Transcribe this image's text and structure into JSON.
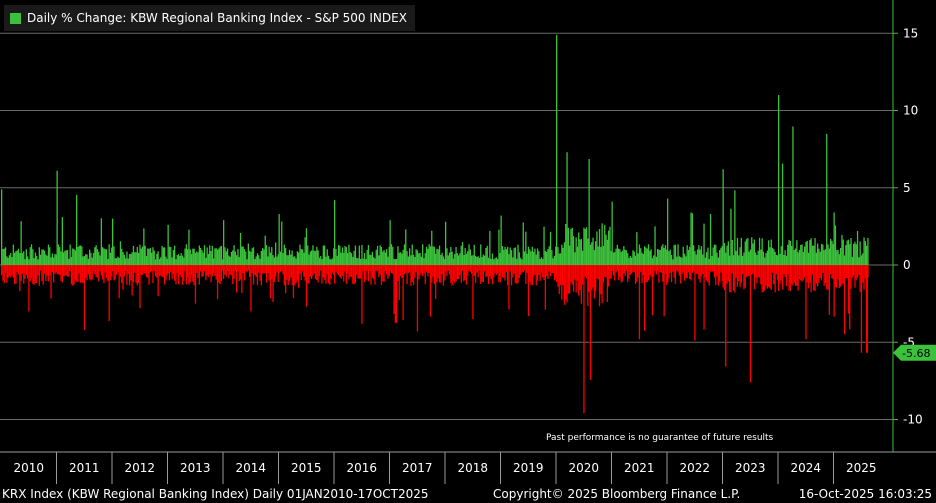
{
  "legend": {
    "label": "Daily % Change: KBW Regional Banking Index - S&P 500 INDEX",
    "color": "#3bc13b"
  },
  "chart_data": {
    "type": "bar",
    "title": "Daily % Change: KBW Regional Banking Index - S&P 500 INDEX",
    "ylim": [
      -12,
      17
    ],
    "y_ticks": [
      15,
      10,
      5,
      0,
      -5,
      -10
    ],
    "y_tick_labels": [
      "15",
      "10",
      "5",
      "0",
      "-5",
      "-10"
    ],
    "x_tick_labels": [
      "2010",
      "2011",
      "2012",
      "2013",
      "2014",
      "2015",
      "2016",
      "2017",
      "2018",
      "2019",
      "2020",
      "2021",
      "2022",
      "2023",
      "2024",
      "2025"
    ],
    "last_value": -5.68,
    "last_value_label": "-5.68",
    "grid": true,
    "positive_color": "#3bc13b",
    "negative_color": "#ff0000",
    "series": [
      {
        "name": "Daily % Change: KBW Regional Banking Index - S&P 500 INDEX",
        "x": [
          "2010",
          "2011",
          "2012",
          "2013",
          "2014",
          "2015",
          "2016",
          "2017",
          "2018",
          "2019",
          "2020",
          "2021",
          "2022",
          "2023",
          "2024",
          "2025"
        ],
        "max_values": [
          4.9,
          6.1,
          3.0,
          2.6,
          2.9,
          3.3,
          4.2,
          2.9,
          2.8,
          3.2,
          14.9,
          4.1,
          4.3,
          6.2,
          11.0,
          3.4
        ],
        "min_values": [
          -3.0,
          -4.2,
          -2.8,
          -2.5,
          -3.0,
          -2.7,
          -3.8,
          -4.3,
          -3.5,
          -3.3,
          -9.6,
          -4.8,
          -4.9,
          -7.6,
          -4.8,
          -5.68
        ]
      }
    ]
  },
  "note": "Past performance is no guarantee of future results",
  "footer": {
    "left": "KRX Index (KBW Regional Banking Index)  Daily 01JAN2010-17OCT2025",
    "middle": "Copyright© 2025 Bloomberg Finance L.P.",
    "right": "16-Oct-2025 16:03:25"
  }
}
